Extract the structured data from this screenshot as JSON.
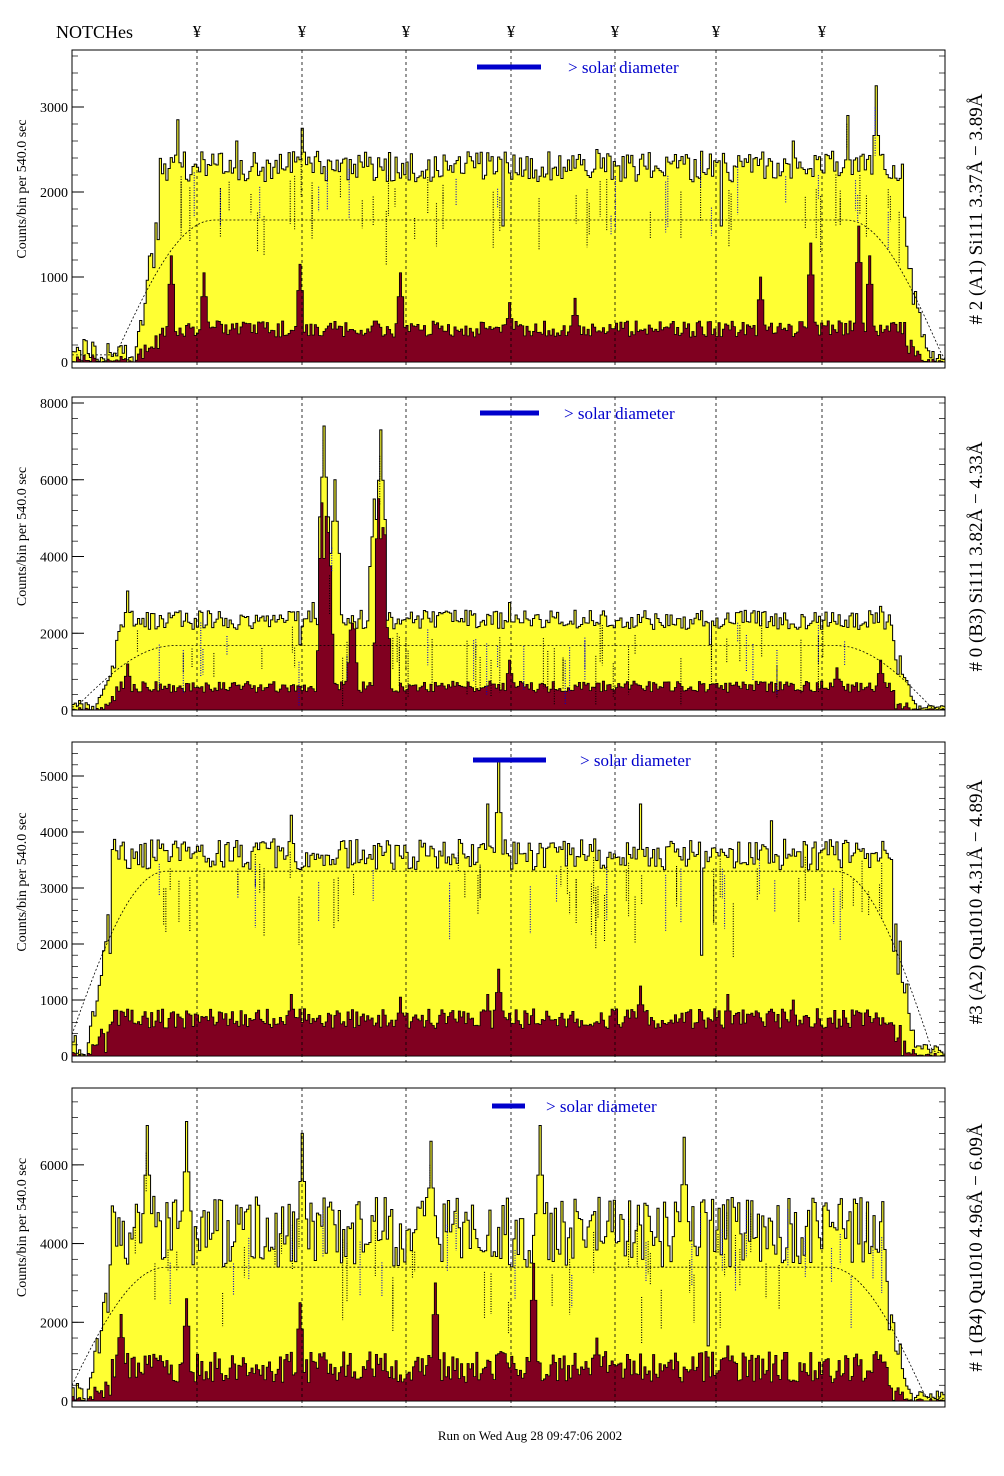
{
  "header": {
    "notches_label": "NOTCHes",
    "notch_marker_glyph": "¥",
    "notch_count": 7
  },
  "footer": {
    "run_label": "Run on Wed Aug 28 09:47:06 2002"
  },
  "colors": {
    "total_fill": "#ffff33",
    "component_fill": "#800020",
    "outline": "#000000",
    "diameter_bar": "#0000cc",
    "annotation_blue": "#0000cc",
    "annotation_black": "#000000"
  },
  "chart_data": [
    {
      "type": "histogram",
      "ylabel": "Counts/bin per    540.0 sec",
      "side_label": "# 2 (A1) Si111  3.37Å − 3.89Å",
      "diameter_label": "> solar diameter",
      "yticks": [
        0,
        1000,
        2000,
        3000
      ],
      "ylim": [
        0,
        3600
      ],
      "n_bins": 400,
      "plateau": {
        "start_bin": 40,
        "end_bin": 380,
        "level": 2300,
        "noise": 180,
        "spikes": [
          [
            48,
            2850
          ],
          [
            75,
            2600
          ],
          [
            105,
            2750
          ],
          [
            155,
            2450
          ],
          [
            205,
            2400
          ],
          [
            240,
            2500
          ],
          [
            330,
            2600
          ],
          [
            355,
            2900
          ],
          [
            368,
            3250
          ]
        ]
      },
      "component": {
        "base": 350,
        "noise": 120,
        "spikes": [
          [
            45,
            1250
          ],
          [
            60,
            1050
          ],
          [
            104,
            1150
          ],
          [
            150,
            1050
          ],
          [
            200,
            700
          ],
          [
            230,
            750
          ],
          [
            315,
            1000
          ],
          [
            338,
            1400
          ],
          [
            360,
            1600
          ],
          [
            365,
            1250
          ]
        ]
      },
      "envelope_level": 1670,
      "notch_dips": [
        [
          197,
          1600
        ],
        [
          297,
          1600
        ]
      ]
    },
    {
      "type": "histogram",
      "ylabel": "Counts/bin per    540.0 sec",
      "side_label": "# 0 (B3) Si111  3.82Å − 4.33Å",
      "diameter_label": "> solar diameter",
      "yticks": [
        0,
        2000,
        4000,
        6000,
        8000
      ],
      "ylim": [
        0,
        8000
      ],
      "n_bins": 400,
      "plateau": {
        "start_bin": 22,
        "end_bin": 375,
        "level": 2350,
        "noise": 250,
        "spikes": [
          [
            25,
            3100
          ],
          [
            110,
            2800
          ],
          [
            115,
            7400
          ],
          [
            120,
            6000
          ],
          [
            138,
            5500
          ],
          [
            141,
            7300
          ],
          [
            200,
            2800
          ],
          [
            230,
            2600
          ],
          [
            370,
            2700
          ]
        ]
      },
      "component": {
        "base": 550,
        "noise": 180,
        "spikes": [
          [
            25,
            1200
          ],
          [
            114,
            5400
          ],
          [
            117,
            6900
          ],
          [
            128,
            4300
          ],
          [
            140,
            6100
          ],
          [
            143,
            6500
          ],
          [
            200,
            1300
          ],
          [
            350,
            1100
          ],
          [
            370,
            1300
          ]
        ]
      },
      "envelope_level": 1680,
      "notch_dips": [
        [
          104,
          1700
        ],
        [
          292,
          1700
        ]
      ]
    },
    {
      "type": "histogram",
      "ylabel": "Counts/bin per    540.0 sec",
      "side_label": "#3 (A2) Qu1010  4.31Å − 4.89Å",
      "diameter_label": "> solar diameter",
      "yticks": [
        0,
        1000,
        2000,
        3000,
        4000,
        5000
      ],
      "ylim": [
        0,
        5500
      ],
      "n_bins": 400,
      "plateau": {
        "start_bin": 18,
        "end_bin": 375,
        "level": 3600,
        "noise": 280,
        "spikes": [
          [
            100,
            4300
          ],
          [
            190,
            4500
          ],
          [
            195,
            5300
          ],
          [
            260,
            4500
          ],
          [
            320,
            4200
          ]
        ]
      },
      "component": {
        "base": 600,
        "noise": 220,
        "spikes": [
          [
            100,
            1100
          ],
          [
            150,
            1050
          ],
          [
            190,
            1100
          ],
          [
            195,
            1550
          ],
          [
            260,
            1250
          ],
          [
            300,
            1100
          ],
          [
            330,
            1000
          ]
        ]
      },
      "envelope_level": 3300,
      "notch_dips": [
        [
          288,
          1800
        ]
      ]
    },
    {
      "type": "histogram",
      "ylabel": "Counts/bin per    540.0 sec",
      "side_label": "# 1 (B4) Qu1010 4.96Å − 6.09Å",
      "diameter_label": "> solar diameter",
      "yticks": [
        0,
        2000,
        4000,
        6000
      ],
      "ylim": [
        0,
        7800
      ],
      "n_bins": 400,
      "plateau": {
        "start_bin": 18,
        "end_bin": 372,
        "level": 4300,
        "noise": 900,
        "spikes": [
          [
            34,
            7000
          ],
          [
            52,
            7100
          ],
          [
            105,
            6800
          ],
          [
            164,
            6600
          ],
          [
            214,
            7000
          ],
          [
            280,
            6700
          ]
        ]
      },
      "component": {
        "base": 700,
        "noise": 500,
        "spikes": [
          [
            22,
            2200
          ],
          [
            52,
            2600
          ],
          [
            104,
            2500
          ],
          [
            166,
            3000
          ],
          [
            211,
            3500
          ],
          [
            240,
            1600
          ],
          [
            300,
            1400
          ]
        ]
      },
      "envelope_level": 3400,
      "notch_dips": [
        [
          291,
          1400
        ]
      ]
    }
  ]
}
